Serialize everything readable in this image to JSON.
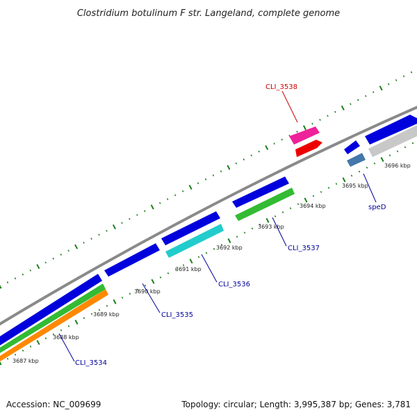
{
  "title": "Clostridium botulinum F str. Langeland, complete genome",
  "footer": {
    "accession": "Accession: NC_009699",
    "summary": "Topology: circular; Length: 3,995,387 bp; Genes: 3,781"
  },
  "ruler_labels": [
    "3687 kbp",
    "3688 kbp",
    "3689 kbp",
    "3690 kbp",
    "3691 kbp",
    "3692 kbp",
    "3693 kbp",
    "3694 kbp",
    "3695 kbp",
    "3696 kbp"
  ],
  "gene_labels": [
    {
      "text": "CLI_3538",
      "color": "#cc0000"
    },
    {
      "text": "speD",
      "color": "#000099"
    },
    {
      "text": "CLI_3537",
      "color": "#000099"
    },
    {
      "text": "CLI_3536",
      "color": "#000099"
    },
    {
      "text": "CLI_3535",
      "color": "#000099"
    },
    {
      "text": "CLI_3534",
      "color": "#000099"
    }
  ],
  "colors": {
    "backbone": "#8a8a8a",
    "tick": "#1a7f1a",
    "cds": "#0000dd",
    "gene_blue": "#0000dd",
    "gene_red": "#ee0000",
    "gene_magenta": "#ee2299",
    "gene_green": "#33bb33",
    "gene_cyan": "#22cccc",
    "gene_orange": "#ff8800",
    "gene_steel": "#4477aa",
    "gene_grey": "#c8c8c8",
    "label_line_red": "#cc0000",
    "label_line_blue": "#000099"
  }
}
